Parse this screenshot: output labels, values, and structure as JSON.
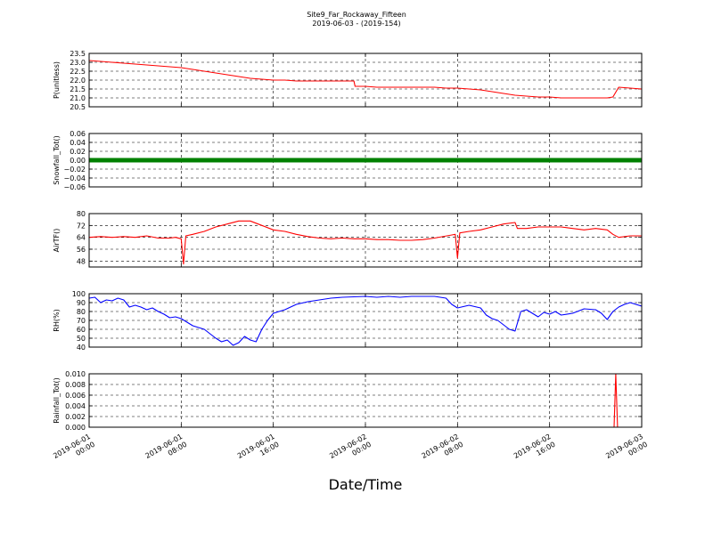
{
  "figure": {
    "title": "Site9_Far_Rockaway_Fifteen",
    "subtitle": "2019-06-03 - (2019-154)",
    "xlabel": "Date/Time"
  },
  "chart_data": {
    "type": "line",
    "grid": true,
    "x_ticks": [
      {
        "line1": "2019-06-01",
        "line2": "00:00",
        "hour": 0
      },
      {
        "line1": "2019-06-01",
        "line2": "08:00",
        "hour": 8
      },
      {
        "line1": "2019-06-01",
        "line2": "16:00",
        "hour": 16
      },
      {
        "line1": "2019-06-02",
        "line2": "00:00",
        "hour": 24
      },
      {
        "line1": "2019-06-02",
        "line2": "08:00",
        "hour": 32
      },
      {
        "line1": "2019-06-02",
        "line2": "16:00",
        "hour": 40
      },
      {
        "line1": "2019-06-03",
        "line2": "00:00",
        "hour": 48
      }
    ],
    "x_range_hours": [
      0,
      48
    ],
    "panels": [
      {
        "ylabel": "P(unitless)",
        "ylim": [
          20.5,
          23.5
        ],
        "yticks": [
          "23.5",
          "23.0",
          "22.5",
          "22.0",
          "21.5",
          "21.0",
          "20.5"
        ],
        "ytick_values": [
          23.5,
          23.0,
          22.5,
          22.0,
          21.5,
          21.0,
          20.5
        ],
        "color": "#ff0000",
        "style": "line",
        "points": [
          [
            0,
            23.1
          ],
          [
            1,
            23.05
          ],
          [
            2,
            23.0
          ],
          [
            3,
            22.95
          ],
          [
            4,
            22.9
          ],
          [
            5,
            22.85
          ],
          [
            6,
            22.8
          ],
          [
            7,
            22.75
          ],
          [
            8,
            22.7
          ],
          [
            9,
            22.6
          ],
          [
            10,
            22.5
          ],
          [
            11,
            22.4
          ],
          [
            12,
            22.3
          ],
          [
            13,
            22.2
          ],
          [
            14,
            22.1
          ],
          [
            15,
            22.05
          ],
          [
            16,
            22.0
          ],
          [
            17,
            22.0
          ],
          [
            18,
            21.95
          ],
          [
            19,
            21.95
          ],
          [
            20,
            21.95
          ],
          [
            21,
            21.95
          ],
          [
            22,
            21.95
          ],
          [
            23,
            21.95
          ],
          [
            23.1,
            21.65
          ],
          [
            24,
            21.65
          ],
          [
            25,
            21.6
          ],
          [
            26,
            21.6
          ],
          [
            27,
            21.6
          ],
          [
            28,
            21.6
          ],
          [
            29,
            21.6
          ],
          [
            30,
            21.6
          ],
          [
            31,
            21.55
          ],
          [
            32,
            21.55
          ],
          [
            33,
            21.5
          ],
          [
            34,
            21.45
          ],
          [
            35,
            21.35
          ],
          [
            36,
            21.25
          ],
          [
            37,
            21.15
          ],
          [
            38,
            21.1
          ],
          [
            39,
            21.05
          ],
          [
            40,
            21.05
          ],
          [
            41,
            21.0
          ],
          [
            42,
            21.0
          ],
          [
            43,
            21.0
          ],
          [
            44,
            21.0
          ],
          [
            45,
            21.0
          ],
          [
            45.5,
            21.05
          ],
          [
            46,
            21.6
          ],
          [
            47,
            21.55
          ],
          [
            48,
            21.5
          ]
        ]
      },
      {
        "ylabel": "Snowfall_Tot()",
        "ylim": [
          -0.06,
          0.06
        ],
        "yticks": [
          "0.06",
          "0.04",
          "0.02",
          "0.00",
          "−0.02",
          "−0.04",
          "−0.06"
        ],
        "ytick_values": [
          0.06,
          0.04,
          0.02,
          0.0,
          -0.02,
          -0.04,
          -0.06
        ],
        "color": "#008000",
        "style": "thick",
        "points": [
          [
            0,
            0
          ],
          [
            48,
            0
          ]
        ]
      },
      {
        "ylabel": "AirTF()",
        "ylim": [
          44,
          80
        ],
        "yticks": [
          "80",
          "72",
          "64",
          "56",
          "48"
        ],
        "ytick_values": [
          80,
          72,
          64,
          56,
          48
        ],
        "color": "#ff0000",
        "style": "line",
        "points": [
          [
            0,
            64
          ],
          [
            1,
            64.5
          ],
          [
            2,
            64
          ],
          [
            3,
            64.5
          ],
          [
            4,
            64
          ],
          [
            5,
            65
          ],
          [
            6,
            63.5
          ],
          [
            7,
            63.5
          ],
          [
            7.5,
            64
          ],
          [
            8,
            63
          ],
          [
            8.2,
            46
          ],
          [
            8.4,
            65
          ],
          [
            9,
            66
          ],
          [
            10,
            68
          ],
          [
            11,
            71
          ],
          [
            12,
            73
          ],
          [
            13,
            75
          ],
          [
            14,
            75
          ],
          [
            15,
            72
          ],
          [
            16,
            69
          ],
          [
            17,
            68
          ],
          [
            18,
            66
          ],
          [
            19,
            64.5
          ],
          [
            20,
            63.5
          ],
          [
            21,
            63
          ],
          [
            22,
            63.5
          ],
          [
            23,
            63
          ],
          [
            24,
            63
          ],
          [
            25,
            62.5
          ],
          [
            26,
            62.5
          ],
          [
            27,
            62
          ],
          [
            28,
            62
          ],
          [
            29,
            62.5
          ],
          [
            30,
            63.5
          ],
          [
            31.8,
            66
          ],
          [
            32,
            50
          ],
          [
            32.2,
            67
          ],
          [
            33,
            68
          ],
          [
            34,
            69
          ],
          [
            35,
            71
          ],
          [
            36,
            73
          ],
          [
            37,
            74
          ],
          [
            37.2,
            70
          ],
          [
            38,
            70
          ],
          [
            39,
            71
          ],
          [
            40,
            71
          ],
          [
            41,
            71
          ],
          [
            42,
            70
          ],
          [
            43,
            69
          ],
          [
            44,
            70
          ],
          [
            45,
            69
          ],
          [
            45.5,
            66
          ],
          [
            46,
            64
          ],
          [
            47,
            65
          ],
          [
            48,
            65
          ]
        ]
      },
      {
        "ylabel": "RH(%)",
        "ylim": [
          40,
          100
        ],
        "yticks": [
          "100",
          "90",
          "80",
          "70",
          "60",
          "50",
          "40"
        ],
        "ytick_values": [
          100,
          90,
          80,
          70,
          60,
          50,
          40
        ],
        "color": "#0000ff",
        "style": "line",
        "points": [
          [
            0,
            95
          ],
          [
            0.5,
            96
          ],
          [
            1,
            90
          ],
          [
            1.5,
            93
          ],
          [
            2,
            92
          ],
          [
            2.5,
            95
          ],
          [
            3,
            93
          ],
          [
            3.5,
            85
          ],
          [
            4,
            87
          ],
          [
            4.5,
            85
          ],
          [
            5,
            82
          ],
          [
            5.5,
            84
          ],
          [
            6,
            80
          ],
          [
            6.5,
            77
          ],
          [
            7,
            73
          ],
          [
            7.5,
            74
          ],
          [
            8,
            72
          ],
          [
            8.5,
            68
          ],
          [
            9,
            64
          ],
          [
            9.5,
            62
          ],
          [
            10,
            60
          ],
          [
            10.5,
            55
          ],
          [
            11,
            50
          ],
          [
            11.5,
            46
          ],
          [
            12,
            48
          ],
          [
            12.5,
            42
          ],
          [
            13,
            45
          ],
          [
            13.5,
            52
          ],
          [
            14,
            48
          ],
          [
            14.5,
            46
          ],
          [
            15,
            60
          ],
          [
            15.5,
            70
          ],
          [
            16,
            78
          ],
          [
            16.5,
            80
          ],
          [
            17,
            82
          ],
          [
            18,
            88
          ],
          [
            19,
            91
          ],
          [
            20,
            93
          ],
          [
            21,
            95
          ],
          [
            22,
            96
          ],
          [
            24,
            97
          ],
          [
            25,
            96
          ],
          [
            26,
            97
          ],
          [
            27,
            96
          ],
          [
            28,
            97
          ],
          [
            29,
            97
          ],
          [
            30,
            97
          ],
          [
            31,
            95
          ],
          [
            31.5,
            88
          ],
          [
            32,
            84
          ],
          [
            33,
            87
          ],
          [
            34,
            84
          ],
          [
            34.5,
            76
          ],
          [
            35,
            72
          ],
          [
            35.5,
            70
          ],
          [
            36,
            65
          ],
          [
            36.5,
            60
          ],
          [
            37,
            58
          ],
          [
            37.5,
            80
          ],
          [
            38,
            82
          ],
          [
            38.5,
            78
          ],
          [
            39,
            74
          ],
          [
            39.5,
            79
          ],
          [
            40,
            77
          ],
          [
            40.5,
            80
          ],
          [
            41,
            76
          ],
          [
            42,
            78
          ],
          [
            43,
            83
          ],
          [
            44,
            82
          ],
          [
            44.5,
            78
          ],
          [
            45,
            71
          ],
          [
            45.5,
            80
          ],
          [
            46,
            85
          ],
          [
            46.5,
            88
          ],
          [
            47,
            90
          ],
          [
            48,
            86
          ]
        ]
      },
      {
        "ylabel": "Rainfall_Tot()",
        "ylim": [
          0,
          0.01
        ],
        "yticks": [
          "0.010",
          "0.008",
          "0.006",
          "0.004",
          "0.002",
          "0.000"
        ],
        "ytick_values": [
          0.01,
          0.008,
          0.006,
          0.004,
          0.002,
          0.0
        ],
        "color": "#ff0000",
        "style": "line",
        "points": [
          [
            0,
            0
          ],
          [
            45.6,
            0
          ],
          [
            45.75,
            0.01
          ],
          [
            45.9,
            0
          ],
          [
            48,
            0
          ]
        ]
      }
    ]
  }
}
